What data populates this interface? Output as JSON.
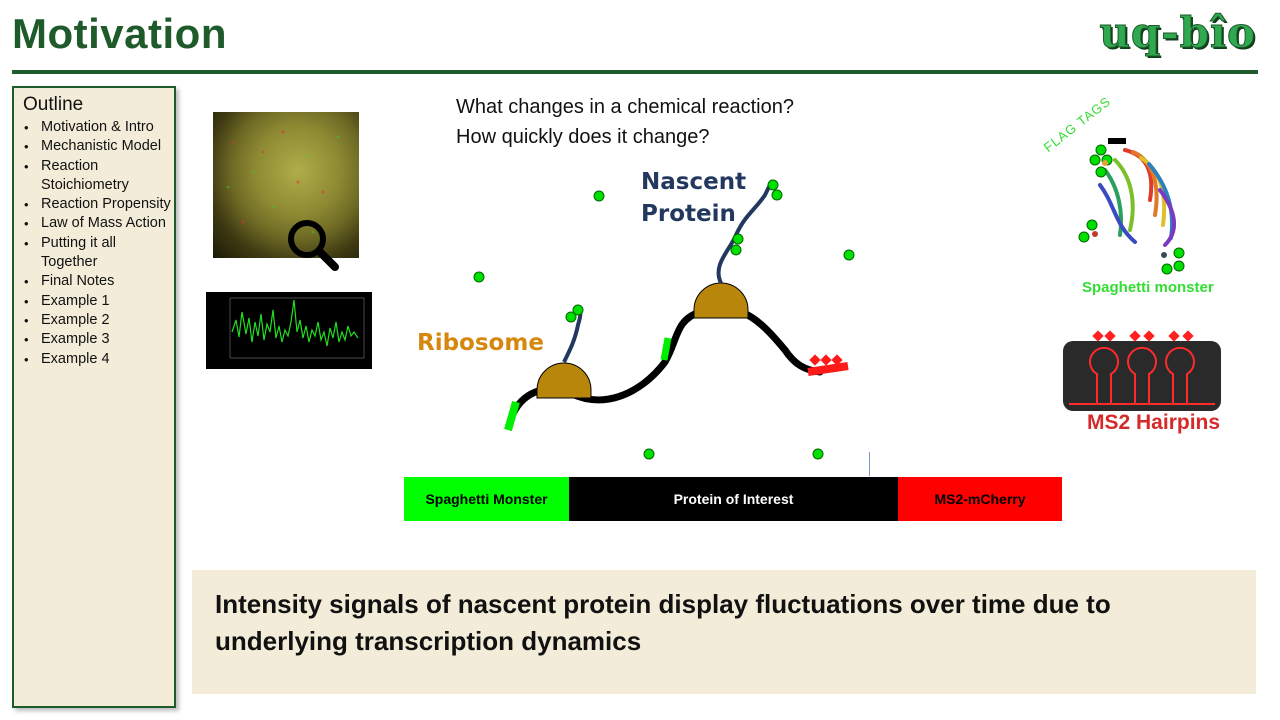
{
  "slide": {
    "title": "Motivation",
    "logo_text": "uq-bîo"
  },
  "outline": {
    "heading": "Outline",
    "items": [
      "Motivation & Intro",
      "Mechanistic Model",
      "Reaction Stoichiometry",
      "Reaction Propensity",
      "Law of Mass Action",
      "Putting it all Together",
      "Final Notes",
      "Example 1",
      "Example 2",
      "Example 3",
      "Example 4"
    ]
  },
  "questions": {
    "line1": "What changes in a chemical reaction?",
    "line2": "How quickly does it change?"
  },
  "diagram": {
    "ribosome_label": "Ribosome",
    "nascent_label_line1": "Nascent",
    "nascent_label_line2": "Protein",
    "flag_tags_label": "FLAG TAGS",
    "spaghetti_label": "Spaghetti monster",
    "ms2_label": "MS2 Hairpins"
  },
  "construct": {
    "segments": [
      {
        "label": "Spaghetti Monster",
        "color": "#00ff00"
      },
      {
        "label": "Protein of Interest",
        "color": "#000000"
      },
      {
        "label": "MS2-mCherry",
        "color": "#ff0000"
      }
    ]
  },
  "summary": {
    "text": "Intensity signals of nascent protein display fluctuations over time due to underlying transcription dynamics"
  },
  "colors": {
    "title_green": "#1e5a2a",
    "panel_beige": "#f3ecd9",
    "ribosome_gold": "#b8860b",
    "fluorophore_green": "#00dd00",
    "mcherry_red": "#ff0000"
  }
}
